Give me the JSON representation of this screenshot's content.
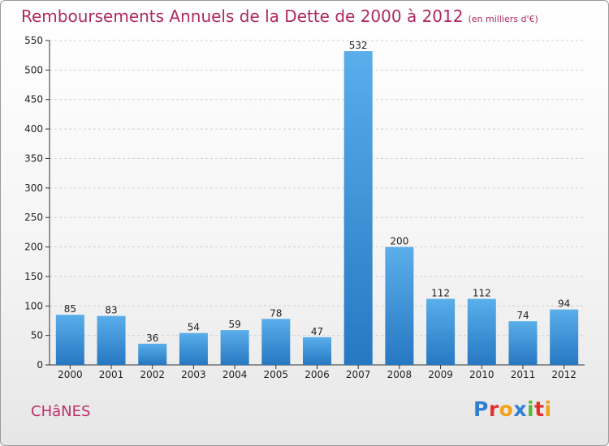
{
  "title": "Remboursements Annuels de la Dette de 2000 à 2012",
  "unit": "(en milliers d'€)",
  "commune": "CHâNES",
  "logo": {
    "text": "Proxiti",
    "letters": [
      {
        "ch": "P",
        "color": "#2f7fd2"
      },
      {
        "ch": "r",
        "color": "#e0332f"
      },
      {
        "ch": "o",
        "color": "#f3a21a"
      },
      {
        "ch": "x",
        "color": "#2f7fd2"
      },
      {
        "ch": "i",
        "color": "#5cb83a"
      },
      {
        "ch": "t",
        "color": "#e0332f"
      },
      {
        "ch": "i",
        "color": "#f3a21a"
      }
    ]
  },
  "colors": {
    "title": "#b0285f",
    "bar_top": "#5aaeea",
    "bar_bottom": "#2778c2",
    "grid": "#d0d0d0"
  },
  "chart_data": {
    "type": "bar",
    "title": "Remboursements Annuels de la Dette de 2000 à 2012",
    "xlabel": "",
    "ylabel": "",
    "categories": [
      "2000",
      "2001",
      "2002",
      "2003",
      "2004",
      "2005",
      "2006",
      "2007",
      "2008",
      "2009",
      "2010",
      "2011",
      "2012"
    ],
    "values": [
      85,
      83,
      36,
      54,
      59,
      78,
      47,
      532,
      200,
      112,
      112,
      74,
      94
    ],
    "ylim": [
      0,
      550
    ],
    "yticks": [
      0,
      50,
      100,
      150,
      200,
      250,
      300,
      350,
      400,
      450,
      500,
      550
    ],
    "grid": true
  }
}
